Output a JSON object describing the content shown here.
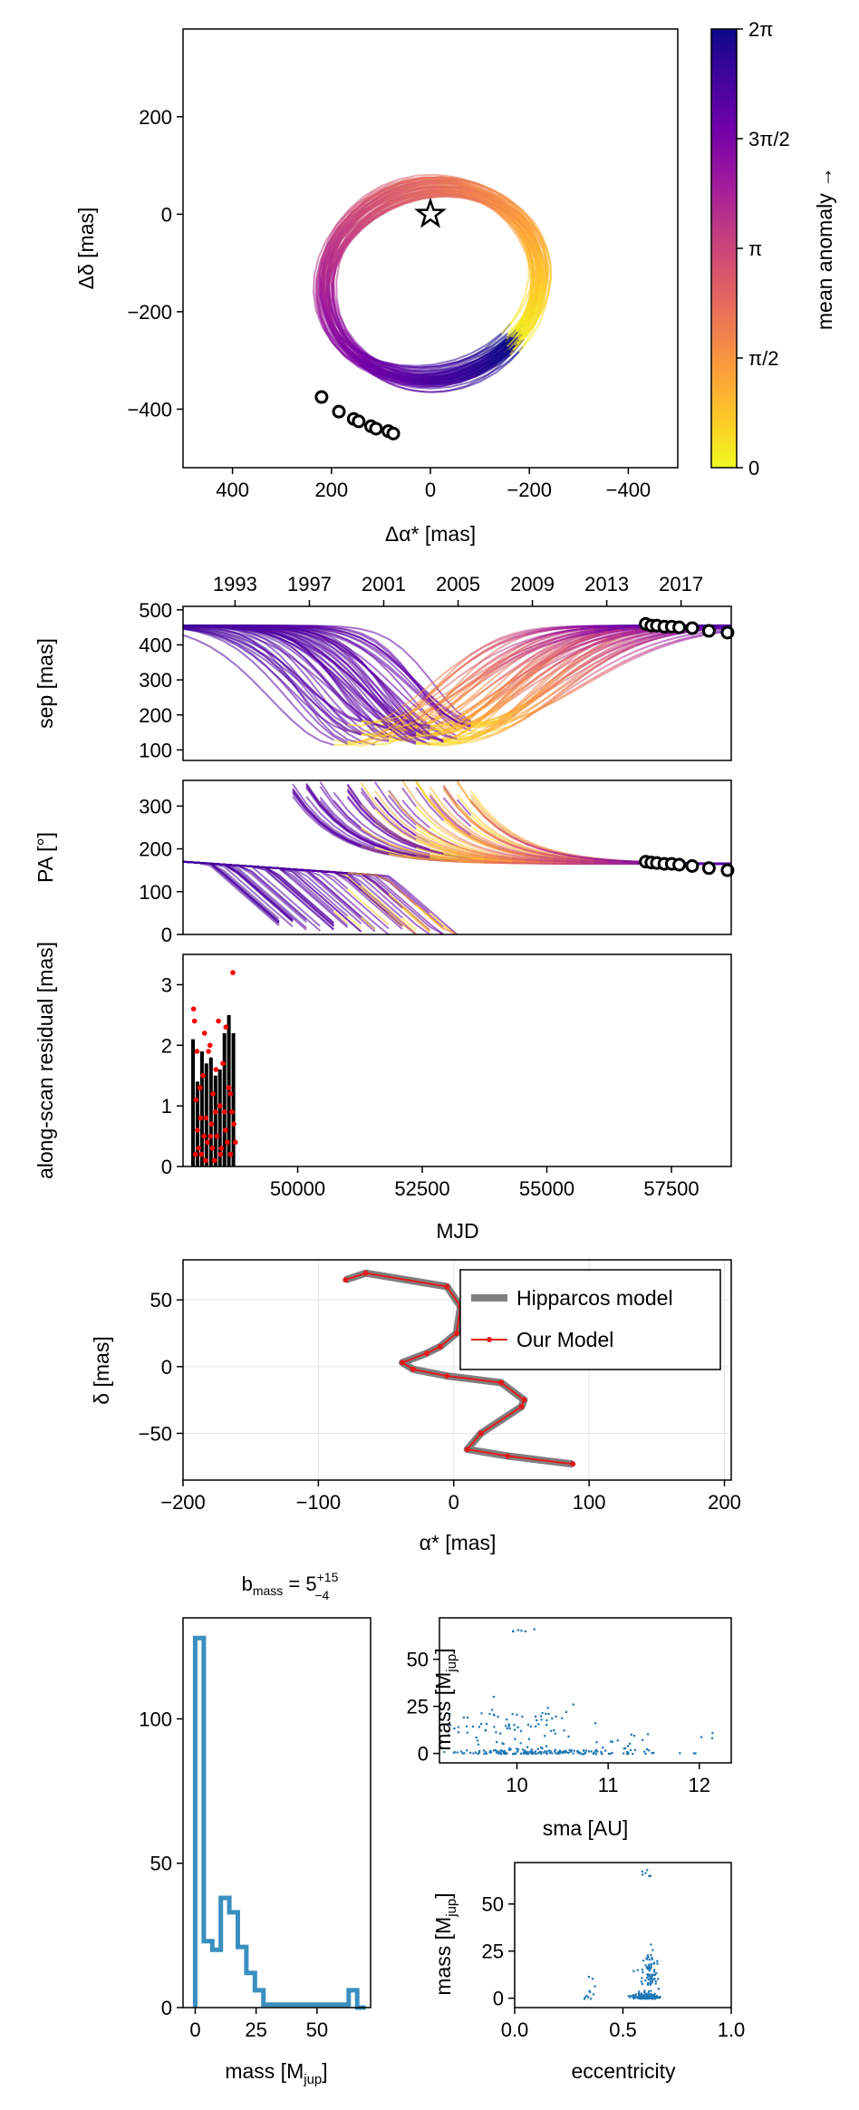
{
  "colors": {
    "plasma": [
      "#f0f921",
      "#fdca26",
      "#fb9f3a",
      "#ed7953",
      "#d8576b",
      "#bd3786",
      "#9c179e",
      "#7201a8",
      "#46039f",
      "#0d0887"
    ],
    "hip_model": "#7f7f7f",
    "our_model": "#e41a1c",
    "resid_points": "#ff0000",
    "hist": "#3a8fc0",
    "scatter": "#1f77b4"
  },
  "chart_data": [
    {
      "id": "sky",
      "type": "line",
      "xlabel": "Δα* [mas]",
      "ylabel": "Δδ [mas]",
      "xlim": [
        500,
        -500
      ],
      "ylim": [
        -520,
        380
      ],
      "xticks": [
        400,
        200,
        0,
        -200,
        -400
      ],
      "xtick_labels": [
        "400",
        "200",
        "0",
        "−200",
        "−400"
      ],
      "yticks": [
        200,
        0,
        -200,
        -400
      ],
      "ytick_labels": [
        "200",
        "0",
        "−200",
        "−400"
      ],
      "star": [
        0,
        0
      ],
      "observations": [
        [
          220,
          -375
        ],
        [
          185,
          -405
        ],
        [
          155,
          -420
        ],
        [
          145,
          -425
        ],
        [
          120,
          -435
        ],
        [
          110,
          -440
        ],
        [
          85,
          -445
        ],
        [
          75,
          -450
        ]
      ],
      "colorbar": {
        "label": "mean anomaly →",
        "ticks": [
          "0",
          "π/2",
          "π",
          "3π/2",
          "2π"
        ],
        "range": [
          0,
          6.283
        ]
      }
    },
    {
      "id": "sep",
      "type": "line",
      "ylabel": "sep [mas]",
      "xlim": [
        1990.2,
        2019.7
      ],
      "ylim": [
        70,
        510
      ],
      "yticks": [
        100,
        200,
        300,
        400,
        500
      ],
      "ytick_labels": [
        "100",
        "200",
        "300",
        "400",
        "500"
      ],
      "top_axis_ticks": [
        1993,
        1997,
        2001,
        2005,
        2009,
        2013,
        2017
      ],
      "top_axis_labels": [
        "1993",
        "1997",
        "2001",
        "2005",
        "2009",
        "2013",
        "2017"
      ],
      "observations": [
        [
          2015.1,
          460
        ],
        [
          2015.4,
          455
        ],
        [
          2015.7,
          455
        ],
        [
          2016.1,
          452
        ],
        [
          2016.5,
          452
        ],
        [
          2016.9,
          450
        ],
        [
          2017.6,
          448
        ],
        [
          2018.5,
          440
        ],
        [
          2019.5,
          435
        ]
      ]
    },
    {
      "id": "pa",
      "type": "line",
      "ylabel": "PA [°]",
      "xlim": [
        1990.2,
        2019.7
      ],
      "ylim": [
        0,
        360
      ],
      "yticks": [
        0,
        100,
        200,
        300
      ],
      "ytick_labels": [
        "0",
        "100",
        "200",
        "300"
      ],
      "observations": [
        [
          2015.1,
          170
        ],
        [
          2015.4,
          168
        ],
        [
          2015.7,
          167
        ],
        [
          2016.1,
          165
        ],
        [
          2016.5,
          165
        ],
        [
          2016.9,
          163
        ],
        [
          2017.6,
          160
        ],
        [
          2018.5,
          155
        ],
        [
          2019.5,
          150
        ]
      ]
    },
    {
      "id": "resid",
      "type": "scatter",
      "xlabel": "MJD",
      "ylabel": "along-scan residual [mas]",
      "xlim": [
        47700,
        58700
      ],
      "ylim": [
        0,
        3.5
      ],
      "xticks": [
        50000,
        52500,
        55000,
        57500
      ],
      "xtick_labels": [
        "50000",
        "52500",
        "55000",
        "57500"
      ],
      "yticks": [
        0,
        1,
        2,
        3
      ],
      "ytick_labels": [
        "0",
        "1",
        "2",
        "3"
      ],
      "bars": [
        [
          47900,
          2.1
        ],
        [
          47990,
          1.4
        ],
        [
          48080,
          1.9
        ],
        [
          48170,
          1.7
        ],
        [
          48260,
          1.8
        ],
        [
          48350,
          1.5
        ],
        [
          48440,
          1.6
        ],
        [
          48530,
          2.2
        ],
        [
          48620,
          2.5
        ],
        [
          48710,
          2.2
        ]
      ],
      "points": [
        [
          47910,
          2.6
        ],
        [
          47930,
          2.4
        ],
        [
          47960,
          1.1
        ],
        [
          47990,
          0.6
        ],
        [
          48010,
          0.3
        ],
        [
          48040,
          1.3
        ],
        [
          48070,
          0.2
        ],
        [
          48100,
          1.5
        ],
        [
          48130,
          2.2
        ],
        [
          48160,
          0.8
        ],
        [
          48190,
          0.4
        ],
        [
          48210,
          1.9
        ],
        [
          48240,
          2.0
        ],
        [
          48270,
          0.7
        ],
        [
          48300,
          1.2
        ],
        [
          48330,
          0.1
        ],
        [
          48360,
          1.6
        ],
        [
          48380,
          0.5
        ],
        [
          48410,
          2.4
        ],
        [
          48440,
          1.0
        ],
        [
          48470,
          0.3
        ],
        [
          48500,
          1.7
        ],
        [
          48530,
          0.9
        ],
        [
          48560,
          2.3
        ],
        [
          48590,
          0.4
        ],
        [
          48620,
          1.3
        ],
        [
          48650,
          0.2
        ],
        [
          48680,
          0.9
        ],
        [
          48700,
          3.2
        ],
        [
          48720,
          0.7
        ],
        [
          48750,
          0.4
        ],
        [
          47950,
          0.2
        ],
        [
          48050,
          0.8
        ],
        [
          48150,
          0.1
        ],
        [
          48250,
          0.5
        ],
        [
          48350,
          0.9
        ],
        [
          48450,
          0.2
        ],
        [
          48550,
          0.6
        ],
        [
          48650,
          1.2
        ],
        [
          47980,
          1.9
        ],
        [
          48120,
          0.5
        ],
        [
          48290,
          0.3
        ]
      ]
    },
    {
      "id": "hip",
      "type": "line",
      "xlabel": "α* [mas]",
      "ylabel": "δ [mas]",
      "xlim": [
        -200,
        205
      ],
      "ylim": [
        -85,
        80
      ],
      "xticks": [
        -200,
        -100,
        0,
        100,
        200
      ],
      "xtick_labels": [
        "−200",
        "−100",
        "0",
        "100",
        "200"
      ],
      "yticks": [
        50,
        0,
        -50
      ],
      "ytick_labels": [
        "50",
        "0",
        "−50"
      ],
      "legend": [
        "Hipparcos model",
        "Our Model"
      ],
      "path": [
        [
          -80,
          65
        ],
        [
          -65,
          70
        ],
        [
          -5,
          60
        ],
        [
          5,
          45
        ],
        [
          2,
          25
        ],
        [
          -10,
          15
        ],
        [
          -20,
          10
        ],
        [
          -38,
          3
        ],
        [
          -30,
          -2
        ],
        [
          -5,
          -7
        ],
        [
          35,
          -12
        ],
        [
          52,
          -25
        ],
        [
          50,
          -30
        ],
        [
          20,
          -50
        ],
        [
          10,
          -62
        ],
        [
          40,
          -67
        ],
        [
          88,
          -73
        ]
      ]
    },
    {
      "id": "mass_hist",
      "type": "bar",
      "title": "b_mass = 5+15−4",
      "xlabel": "mass [Mjup]",
      "xlim": [
        -5,
        72
      ],
      "ylim": [
        0,
        135
      ],
      "xticks": [
        0,
        25,
        50
      ],
      "xtick_labels": [
        "0",
        "25",
        "50"
      ],
      "yticks": [
        0,
        50,
        100
      ],
      "ytick_labels": [
        "0",
        "50",
        "100"
      ],
      "bin_edges": [
        0,
        3.5,
        7,
        10.5,
        14,
        17.5,
        21,
        24.5,
        28,
        31.5,
        35,
        38.5,
        42,
        45.5,
        49,
        52.5,
        56,
        59.5,
        63,
        66.5,
        70
      ],
      "counts": [
        128,
        23,
        20,
        38,
        33,
        21,
        12,
        6,
        1,
        1,
        1,
        1,
        1,
        1,
        1,
        1,
        1,
        1,
        6,
        0
      ]
    },
    {
      "id": "mass_sma",
      "type": "scatter",
      "xlabel": "sma [AU]",
      "ylabel": "mass [Mjup]",
      "xlim": [
        9.15,
        12.35
      ],
      "ylim": [
        -5,
        72
      ],
      "xticks": [
        10,
        11,
        12
      ],
      "xtick_labels": [
        "10",
        "11",
        "12"
      ],
      "yticks": [
        0,
        25,
        50
      ],
      "ytick_labels": [
        "0",
        "25",
        "50"
      ],
      "clusters": [
        {
          "cx": 10.2,
          "cy": 1,
          "sx": 0.65,
          "sy": 1.2,
          "n": 170
        },
        {
          "cx": 10.1,
          "cy": 14,
          "sx": 0.4,
          "sy": 6,
          "n": 70
        },
        {
          "cx": 9.6,
          "cy": 18,
          "sx": 0.3,
          "sy": 3,
          "n": 12
        },
        {
          "cx": 11.15,
          "cy": 9,
          "sx": 0.15,
          "sy": 4,
          "n": 10
        },
        {
          "cx": 10.1,
          "cy": 66,
          "sx": 0.15,
          "sy": 1,
          "n": 6
        },
        {
          "cx": 12.15,
          "cy": 10,
          "sx": 0.05,
          "sy": 2,
          "n": 3
        }
      ]
    },
    {
      "id": "mass_ecc",
      "type": "scatter",
      "xlabel": "eccentricity",
      "ylabel": "mass [Mjup]",
      "xlim": [
        0,
        1
      ],
      "ylim": [
        -5,
        72
      ],
      "xticks": [
        0,
        0.5,
        1
      ],
      "xtick_labels": [
        "0.0",
        "0.5",
        "1.0"
      ],
      "yticks": [
        0,
        25,
        50
      ],
      "ytick_labels": [
        "0",
        "25",
        "50"
      ],
      "clusters": [
        {
          "cx": 0.6,
          "cy": 1,
          "sx": 0.03,
          "sy": 1.2,
          "n": 170
        },
        {
          "cx": 0.62,
          "cy": 14,
          "sx": 0.02,
          "sy": 6,
          "n": 80
        },
        {
          "cx": 0.6,
          "cy": 66,
          "sx": 0.01,
          "sy": 1.5,
          "n": 6
        },
        {
          "cx": 0.35,
          "cy": 5,
          "sx": 0.01,
          "sy": 4,
          "n": 8
        },
        {
          "cx": 0.33,
          "cy": 1,
          "sx": 0.01,
          "sy": 0.5,
          "n": 3
        }
      ]
    }
  ]
}
